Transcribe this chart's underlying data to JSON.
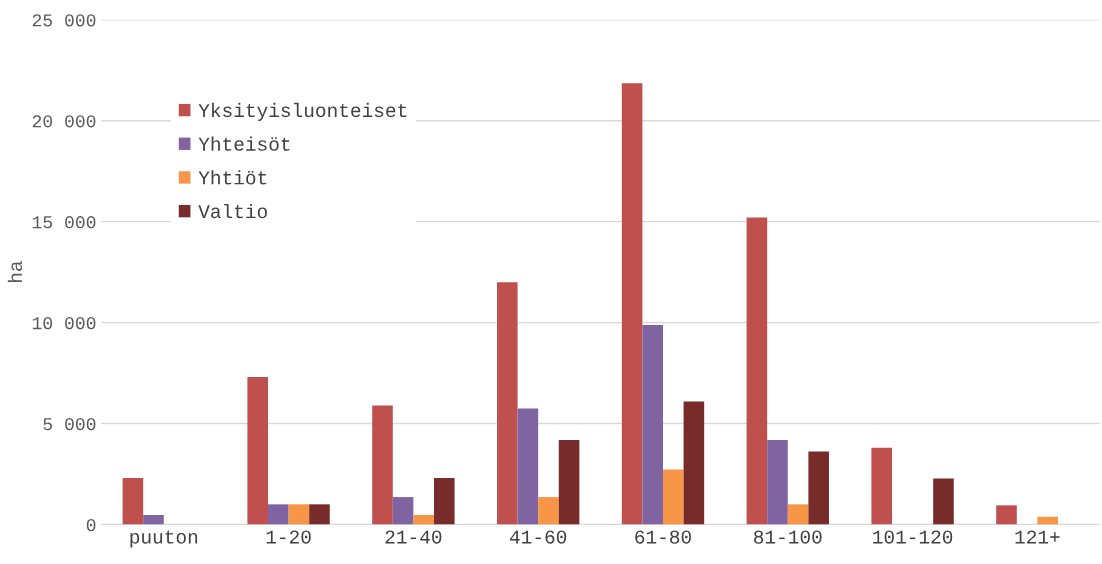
{
  "chart_data": {
    "type": "bar",
    "ylabel": "ha",
    "categories": [
      "puuton",
      "1-20",
      "21-40",
      "41-60",
      "61-80",
      "81-100",
      "101-120",
      "121+"
    ],
    "series": [
      {
        "name": "Yksityisluonteiset",
        "color": "#c0504d",
        "values": [
          2300,
          7300,
          5900,
          12000,
          21860,
          15200,
          3800,
          950
        ]
      },
      {
        "name": "Yhteisöt",
        "color": "#8064a2",
        "values": [
          470,
          1000,
          1360,
          5750,
          9880,
          4180,
          null,
          null
        ]
      },
      {
        "name": "Yhtiöt",
        "color": "#f79646",
        "values": [
          null,
          1000,
          470,
          1360,
          2720,
          1000,
          null,
          380
        ]
      },
      {
        "name": "Valtio",
        "color": "#772c2a",
        "values": [
          null,
          1000,
          2300,
          4180,
          6090,
          3620,
          2280,
          null
        ]
      }
    ],
    "ylim": [
      0,
      25000
    ],
    "yticks": [
      {
        "value": 0,
        "label": "0"
      },
      {
        "value": 5000,
        "label": "5 000"
      },
      {
        "value": 10000,
        "label": "10 000"
      },
      {
        "value": 15000,
        "label": "15 000"
      },
      {
        "value": 20000,
        "label": "20 000"
      },
      {
        "value": 25000,
        "label": "25 000"
      }
    ],
    "grid": "y",
    "legend": "top left"
  }
}
